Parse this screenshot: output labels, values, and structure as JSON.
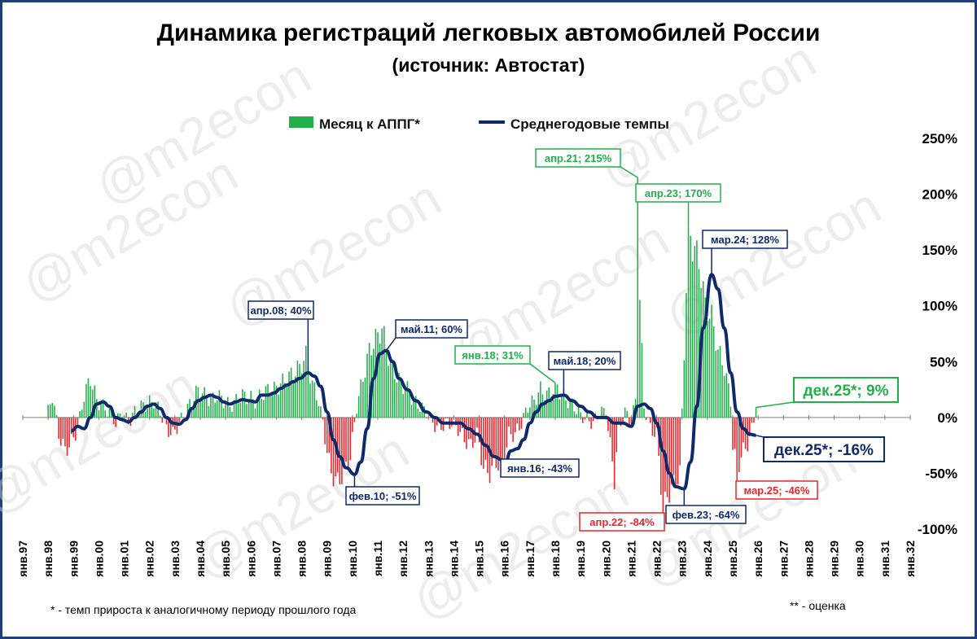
{
  "title": "Динамика регистраций легковых автомобилей России",
  "subtitle": "(источник: Автостат)",
  "watermark": "@m2econ",
  "footnote_left": "* - темп прироста к аналогичному периоду прошлого года",
  "footnote_right": "** - оценка",
  "colors": {
    "bar_positive": "#22b04b",
    "bar_negative": "#e8262b",
    "line": "#0e2a6b",
    "frame": "#1f3f7a"
  },
  "chart_data": {
    "type": "bar+line",
    "legend_placement": "top-center",
    "grid": false,
    "ylim": [
      -1.0,
      2.5
    ],
    "yticks": [
      -1.0,
      -0.5,
      0,
      0.5,
      1.0,
      1.5,
      2.0,
      2.5
    ],
    "ytick_labels": [
      "-100%",
      "-50%",
      "0%",
      "50%",
      "100%",
      "150%",
      "200%",
      "250%"
    ],
    "xlim": [
      "1997-01",
      "2032-01"
    ],
    "xtick_labels": [
      "янв.97",
      "янв.98",
      "янв.99",
      "янв.00",
      "янв.01",
      "янв.02",
      "янв.03",
      "янв.04",
      "янв.05",
      "янв.06",
      "янв.07",
      "янв.08",
      "янв.09",
      "янв.10",
      "янв.11",
      "янв.12",
      "янв.13",
      "янв.14",
      "янв.15",
      "янв.16",
      "янв.17",
      "янв.18",
      "янв.19",
      "янв.20",
      "янв.21",
      "янв.22",
      "янв.23",
      "янв.24",
      "янв.25",
      "янв.26",
      "янв.27",
      "янв.28",
      "янв.29",
      "янв.30",
      "янв.31",
      "янв.32"
    ],
    "series": [
      {
        "name": "Месяц к АППГ*",
        "type": "bar",
        "anchors": [
          [
            "1998-01",
            0.05
          ],
          [
            "1998-03",
            0.2
          ],
          [
            "1998-06",
            -0.15
          ],
          [
            "1998-09",
            -0.3
          ],
          [
            "1998-12",
            -0.22
          ],
          [
            "1999-03",
            -0.1
          ],
          [
            "1999-06",
            0.2
          ],
          [
            "1999-09",
            0.35
          ],
          [
            "1999-12",
            0.15
          ],
          [
            "2000-03",
            0.1
          ],
          [
            "2000-06",
            0.05
          ],
          [
            "2000-09",
            -0.05
          ],
          [
            "2000-12",
            0.05
          ],
          [
            "2001-03",
            -0.05
          ],
          [
            "2001-06",
            0.05
          ],
          [
            "2001-09",
            0.1
          ],
          [
            "2001-12",
            0.12
          ],
          [
            "2002-03",
            0.15
          ],
          [
            "2002-06",
            0.05
          ],
          [
            "2002-09",
            -0.1
          ],
          [
            "2002-12",
            -0.15
          ],
          [
            "2003-03",
            -0.05
          ],
          [
            "2003-06",
            0.05
          ],
          [
            "2003-09",
            0.15
          ],
          [
            "2003-12",
            0.25
          ],
          [
            "2004-03",
            0.2
          ],
          [
            "2004-06",
            0.15
          ],
          [
            "2004-09",
            0.2
          ],
          [
            "2004-12",
            0.15
          ],
          [
            "2005-03",
            0.1
          ],
          [
            "2005-06",
            0.15
          ],
          [
            "2005-09",
            0.2
          ],
          [
            "2005-12",
            0.18
          ],
          [
            "2006-03",
            0.15
          ],
          [
            "2006-06",
            0.2
          ],
          [
            "2006-09",
            0.25
          ],
          [
            "2006-12",
            0.25
          ],
          [
            "2007-03",
            0.3
          ],
          [
            "2007-06",
            0.35
          ],
          [
            "2007-09",
            0.4
          ],
          [
            "2007-12",
            0.45
          ],
          [
            "2008-03",
            0.55
          ],
          [
            "2008-06",
            0.3
          ],
          [
            "2008-09",
            0.15
          ],
          [
            "2008-11",
            -0.05
          ],
          [
            "2009-01",
            -0.3
          ],
          [
            "2009-03",
            -0.5
          ],
          [
            "2009-06",
            -0.58
          ],
          [
            "2009-09",
            -0.5
          ],
          [
            "2009-12",
            -0.35
          ],
          [
            "2010-03",
            0.1
          ],
          [
            "2010-06",
            0.35
          ],
          [
            "2010-09",
            0.6
          ],
          [
            "2010-12",
            0.7
          ],
          [
            "2011-03",
            0.8
          ],
          [
            "2011-06",
            0.55
          ],
          [
            "2011-09",
            0.4
          ],
          [
            "2011-12",
            0.3
          ],
          [
            "2012-03",
            0.25
          ],
          [
            "2012-06",
            0.15
          ],
          [
            "2012-09",
            0.1
          ],
          [
            "2012-12",
            0.05
          ],
          [
            "2013-03",
            -0.05
          ],
          [
            "2013-06",
            -0.1
          ],
          [
            "2013-09",
            -0.05
          ],
          [
            "2013-12",
            -0.05
          ],
          [
            "2014-03",
            -0.1
          ],
          [
            "2014-06",
            -0.2
          ],
          [
            "2014-09",
            -0.25
          ],
          [
            "2014-12",
            -0.15
          ],
          [
            "2015-03",
            -0.45
          ],
          [
            "2015-06",
            -0.5
          ],
          [
            "2015-09",
            -0.4
          ],
          [
            "2015-12",
            -0.45
          ],
          [
            "2016-03",
            -0.15
          ],
          [
            "2016-06",
            -0.15
          ],
          [
            "2016-09",
            -0.05
          ],
          [
            "2016-12",
            0.1
          ],
          [
            "2017-03",
            0.15
          ],
          [
            "2017-06",
            0.25
          ],
          [
            "2017-09",
            0.2
          ],
          [
            "2017-12",
            0.25
          ],
          [
            "2018-01",
            0.31
          ],
          [
            "2018-04",
            0.2
          ],
          [
            "2018-07",
            0.15
          ],
          [
            "2018-10",
            0.1
          ],
          [
            "2019-01",
            0.02
          ],
          [
            "2019-04",
            -0.02
          ],
          [
            "2019-07",
            -0.05
          ],
          [
            "2019-10",
            0.05
          ],
          [
            "2020-01",
            0.05
          ],
          [
            "2020-04",
            -0.4
          ],
          [
            "2020-05",
            -0.55
          ],
          [
            "2020-07",
            -0.1
          ],
          [
            "2020-10",
            0.05
          ],
          [
            "2021-01",
            -0.05
          ],
          [
            "2021-03",
            0.15
          ],
          [
            "2021-04",
            2.15
          ],
          [
            "2021-05",
            1.05
          ],
          [
            "2021-07",
            0.1
          ],
          [
            "2021-10",
            -0.1
          ],
          [
            "2022-01",
            -0.15
          ],
          [
            "2022-03",
            -0.6
          ],
          [
            "2022-04",
            -0.84
          ],
          [
            "2022-06",
            -0.7
          ],
          [
            "2022-09",
            -0.6
          ],
          [
            "2022-12",
            -0.5
          ],
          [
            "2023-02",
            0.6
          ],
          [
            "2023-04",
            1.7
          ],
          [
            "2023-06",
            1.55
          ],
          [
            "2023-09",
            1.4
          ],
          [
            "2023-12",
            1.0
          ],
          [
            "2024-03",
            0.9
          ],
          [
            "2024-06",
            0.6
          ],
          [
            "2024-09",
            0.45
          ],
          [
            "2024-12",
            0.15
          ],
          [
            "2025-01",
            -0.25
          ],
          [
            "2025-03",
            -0.46
          ],
          [
            "2025-06",
            -0.3
          ],
          [
            "2025-09",
            -0.2
          ],
          [
            "2025-12",
            0.09
          ]
        ]
      },
      {
        "name": "Среднегодовые темпы",
        "type": "line",
        "points": [
          [
            "1998-12",
            -0.12
          ],
          [
            "1999-03",
            -0.08
          ],
          [
            "1999-06",
            -0.1
          ],
          [
            "1999-09",
            0.0
          ],
          [
            "1999-12",
            0.12
          ],
          [
            "2000-03",
            0.14
          ],
          [
            "2000-06",
            0.1
          ],
          [
            "2000-09",
            0.0
          ],
          [
            "2000-12",
            -0.02
          ],
          [
            "2001-03",
            -0.04
          ],
          [
            "2001-06",
            0.0
          ],
          [
            "2001-09",
            0.05
          ],
          [
            "2001-12",
            0.1
          ],
          [
            "2002-03",
            0.12
          ],
          [
            "2002-06",
            0.08
          ],
          [
            "2002-09",
            0.0
          ],
          [
            "2002-12",
            -0.05
          ],
          [
            "2003-03",
            -0.06
          ],
          [
            "2003-06",
            -0.02
          ],
          [
            "2003-09",
            0.08
          ],
          [
            "2003-12",
            0.15
          ],
          [
            "2004-03",
            0.18
          ],
          [
            "2004-06",
            0.2
          ],
          [
            "2004-09",
            0.18
          ],
          [
            "2004-12",
            0.14
          ],
          [
            "2005-03",
            0.12
          ],
          [
            "2005-06",
            0.14
          ],
          [
            "2005-09",
            0.16
          ],
          [
            "2005-12",
            0.15
          ],
          [
            "2006-03",
            0.14
          ],
          [
            "2006-06",
            0.2
          ],
          [
            "2006-09",
            0.2
          ],
          [
            "2006-12",
            0.22
          ],
          [
            "2007-03",
            0.26
          ],
          [
            "2007-06",
            0.29
          ],
          [
            "2007-09",
            0.32
          ],
          [
            "2007-12",
            0.35
          ],
          [
            "2008-04",
            0.4
          ],
          [
            "2008-07",
            0.37
          ],
          [
            "2008-10",
            0.28
          ],
          [
            "2009-01",
            0.05
          ],
          [
            "2009-04",
            -0.2
          ],
          [
            "2009-07",
            -0.35
          ],
          [
            "2009-10",
            -0.45
          ],
          [
            "2010-02",
            -0.51
          ],
          [
            "2010-05",
            -0.4
          ],
          [
            "2010-08",
            -0.1
          ],
          [
            "2010-11",
            0.35
          ],
          [
            "2011-02",
            0.57
          ],
          [
            "2011-05",
            0.6
          ],
          [
            "2011-08",
            0.5
          ],
          [
            "2011-11",
            0.35
          ],
          [
            "2012-03",
            0.25
          ],
          [
            "2012-07",
            0.15
          ],
          [
            "2012-12",
            0.05
          ],
          [
            "2013-04",
            0.0
          ],
          [
            "2013-08",
            -0.05
          ],
          [
            "2013-12",
            -0.05
          ],
          [
            "2014-04",
            -0.05
          ],
          [
            "2014-08",
            -0.1
          ],
          [
            "2014-12",
            -0.15
          ],
          [
            "2015-04",
            -0.25
          ],
          [
            "2015-08",
            -0.35
          ],
          [
            "2015-12",
            -0.38
          ],
          [
            "2016-01",
            -0.43
          ],
          [
            "2016-04",
            -0.3
          ],
          [
            "2016-07",
            -0.28
          ],
          [
            "2016-10",
            -0.2
          ],
          [
            "2017-01",
            -0.05
          ],
          [
            "2017-04",
            0.05
          ],
          [
            "2017-07",
            0.12
          ],
          [
            "2017-10",
            0.15
          ],
          [
            "2018-01",
            0.19
          ],
          [
            "2018-05",
            0.2
          ],
          [
            "2018-09",
            0.15
          ],
          [
            "2019-01",
            0.1
          ],
          [
            "2019-05",
            0.05
          ],
          [
            "2019-09",
            0.0
          ],
          [
            "2020-01",
            0.0
          ],
          [
            "2020-05",
            -0.05
          ],
          [
            "2020-09",
            -0.05
          ],
          [
            "2021-01",
            -0.08
          ],
          [
            "2021-04",
            0.1
          ],
          [
            "2021-07",
            0.12
          ],
          [
            "2021-10",
            0.08
          ],
          [
            "2022-01",
            -0.05
          ],
          [
            "2022-04",
            -0.3
          ],
          [
            "2022-07",
            -0.5
          ],
          [
            "2022-10",
            -0.62
          ],
          [
            "2023-02",
            -0.64
          ],
          [
            "2023-05",
            -0.4
          ],
          [
            "2023-08",
            0.1
          ],
          [
            "2023-11",
            0.8
          ],
          [
            "2024-03",
            1.28
          ],
          [
            "2024-06",
            1.15
          ],
          [
            "2024-09",
            0.8
          ],
          [
            "2024-12",
            0.4
          ],
          [
            "2025-03",
            0.05
          ],
          [
            "2025-06",
            -0.1
          ],
          [
            "2025-09",
            -0.15
          ],
          [
            "2025-12",
            -0.16
          ]
        ]
      }
    ],
    "annotations": [
      {
        "text": "апр.08; 40%",
        "x": "2008-04",
        "y": 0.4,
        "series": "Среднегодовые темпы"
      },
      {
        "text": "фев.10; -51%",
        "x": "2010-02",
        "y": -0.51,
        "series": "Среднегодовые темпы"
      },
      {
        "text": "май.11; 60%",
        "x": "2011-05",
        "y": 0.6,
        "series": "Среднегодовые темпы"
      },
      {
        "text": "янв.18; 31%",
        "x": "2018-01",
        "y": 0.31,
        "series": "Месяц к АППГ*"
      },
      {
        "text": "май.18; 20%",
        "x": "2018-05",
        "y": 0.2,
        "series": "Среднегодовые темпы"
      },
      {
        "text": "янв.16; -43%",
        "x": "2016-01",
        "y": -0.43,
        "series": "Среднегодовые темпы"
      },
      {
        "text": "апр.21; 215%",
        "x": "2021-04",
        "y": 2.15,
        "series": "Месяц к АППГ*"
      },
      {
        "text": "апр.23; 170%",
        "x": "2023-04",
        "y": 1.7,
        "series": "Месяц к АППГ*"
      },
      {
        "text": "мар.24; 128%",
        "x": "2024-03",
        "y": 1.28,
        "series": "Среднегодовые темпы"
      },
      {
        "text": "апр.22; -84%",
        "x": "2022-04",
        "y": -0.84,
        "series": "Месяц к АППГ*"
      },
      {
        "text": "фев.23; -64%",
        "x": "2023-02",
        "y": -0.64,
        "series": "Среднегодовые темпы"
      },
      {
        "text": "мар.25; -46%",
        "x": "2025-03",
        "y": -0.46,
        "series": "Месяц к АППГ*"
      },
      {
        "text": "дек.25*; 9%",
        "x": "2025-12",
        "y": 0.09,
        "series": "Месяц к АППГ*"
      },
      {
        "text": "дек.25*; -16%",
        "x": "2025-12",
        "y": -0.16,
        "series": "Среднегодовые темпы"
      }
    ]
  }
}
